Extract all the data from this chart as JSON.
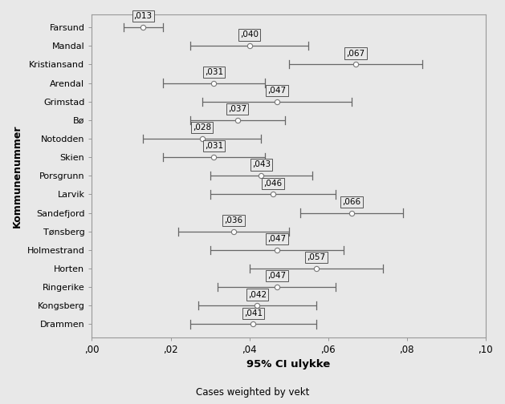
{
  "categories": [
    "Farsund",
    "Mandal",
    "Kristiansand",
    "Arendal",
    "Grimstad",
    "Bø",
    "Notodden",
    "Skien",
    "Porsgrunn",
    "Larvik",
    "Sandefjord",
    "Tønsberg",
    "Holmestrand",
    "Horten",
    "Ringerike",
    "Kongsberg",
    "Drammen"
  ],
  "means": [
    0.013,
    0.04,
    0.067,
    0.031,
    0.047,
    0.037,
    0.028,
    0.031,
    0.043,
    0.046,
    0.066,
    0.036,
    0.047,
    0.057,
    0.047,
    0.042,
    0.041
  ],
  "ci_lower": [
    0.008,
    0.025,
    0.05,
    0.018,
    0.028,
    0.025,
    0.013,
    0.018,
    0.03,
    0.03,
    0.053,
    0.022,
    0.03,
    0.04,
    0.032,
    0.027,
    0.025
  ],
  "ci_upper": [
    0.018,
    0.055,
    0.084,
    0.044,
    0.066,
    0.049,
    0.043,
    0.044,
    0.056,
    0.062,
    0.079,
    0.05,
    0.064,
    0.074,
    0.062,
    0.057,
    0.057
  ],
  "labels": [
    ",013",
    ",040",
    ",067",
    ",031",
    ",047",
    ",037",
    ",028",
    ",031",
    ",043",
    ",046",
    ",066",
    ",036",
    ",047",
    ",057",
    ",047",
    ",042",
    ",041"
  ],
  "xlabel": "95% CI ulykke",
  "ylabel": "Kommunenummer",
  "footnote": "Cases weighted by vekt",
  "xlim": [
    0.0,
    0.1
  ],
  "xticks": [
    0.0,
    0.02,
    0.04,
    0.06,
    0.08,
    0.1
  ],
  "xtick_labels": [
    ",00",
    ",02",
    ",04",
    ",06",
    ",08",
    ",10"
  ],
  "bg_color": "#e8e8e8",
  "fig_color": "#e8e8e8",
  "marker_facecolor": "white",
  "marker_edgecolor": "#777777",
  "line_color": "#666666",
  "box_facecolor": "#e8e8e8",
  "box_edgecolor": "#555555",
  "spine_color": "#999999"
}
